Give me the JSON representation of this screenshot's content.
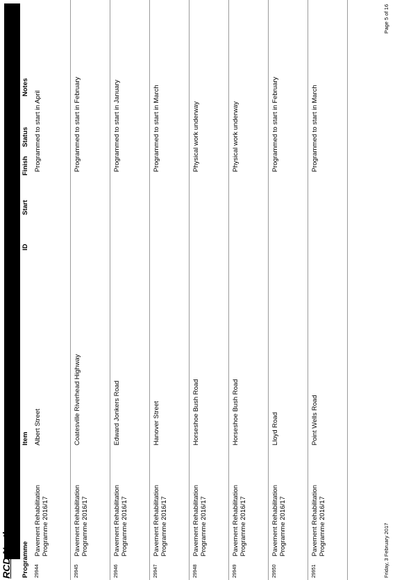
{
  "title": "RCD North",
  "headers": {
    "programme": "Programme",
    "item": "Item",
    "id": "ID",
    "start": "Start",
    "finish": "Finish",
    "status": "Status",
    "notes": "Notes"
  },
  "rows": [
    {
      "num": "29944",
      "programme": "Pavement Rehabilitation Programme 2016/17",
      "item": "Albert Street",
      "notes": "Programmed to start in April"
    },
    {
      "num": "29945",
      "programme": "Pavement Rehabilitation Programme 2016/17",
      "item": "Coatesville Riverhead Highway",
      "notes": "Programmed to start in February"
    },
    {
      "num": "29946",
      "programme": "Pavement Rehabilitation Programme 2016/17",
      "item": "Edward Jonkers Road",
      "notes": "Programmed to start in January"
    },
    {
      "num": "29947",
      "programme": "Pavement Rehabilitation Programme 2016/17",
      "item": "Hanover Street",
      "notes": "Programmed to start in March"
    },
    {
      "num": "29948",
      "programme": "Pavement Rehabilitation Programme 2016/17",
      "item": "Horseshoe Bush Road",
      "notes": "Physical work underway"
    },
    {
      "num": "29949",
      "programme": "Pavement Rehabilitation Programme 2016/17",
      "item": "Horseshoe Bush Road",
      "notes": "Physical work underway"
    },
    {
      "num": "29950",
      "programme": "Pavement Rehabilitation Programme 2016/17",
      "item": "Lloyd Road",
      "notes": "Programmed to start in February"
    },
    {
      "num": "29951",
      "programme": "Pavement Rehabilitation Programme 2016/17",
      "item": "Point Wells Road",
      "notes": "Programmed to start in March"
    }
  ],
  "footer": {
    "date": "Friday, 3 February 2017",
    "page": "Page 5 of 16"
  }
}
